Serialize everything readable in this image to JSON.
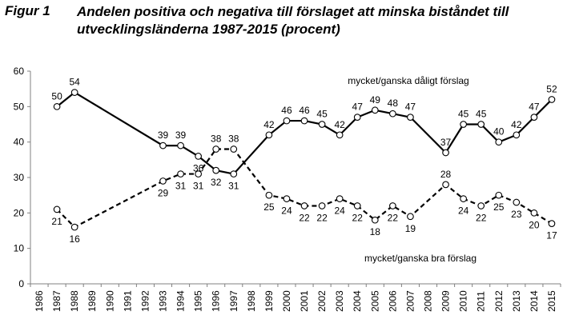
{
  "figure": {
    "label": "Figur 1",
    "title": "Andelen positiva och negativa till förslaget att minska biståndet till utvecklingsländerna 1987-2015 (procent)"
  },
  "chart_data": {
    "type": "line",
    "ylim": [
      0,
      60
    ],
    "yticks": [
      0,
      10,
      20,
      30,
      40,
      50,
      60
    ],
    "x_categories": [
      "1986",
      "1987",
      "1988",
      "1989",
      "1990",
      "1991",
      "1992",
      "1993",
      "1994",
      "1995",
      "1996",
      "1997",
      "1998",
      "1999",
      "2000",
      "2001",
      "2002",
      "2003",
      "2004",
      "2005",
      "2006",
      "2007",
      "2008",
      "2009",
      "2010",
      "2011",
      "2012",
      "2013",
      "2014",
      "2015"
    ],
    "series": [
      {
        "name": "mycket/ganska dåligt förslag",
        "style": "solid",
        "points": [
          {
            "x": "1987",
            "y": 50
          },
          {
            "x": "1988",
            "y": 54
          },
          {
            "x": "1993",
            "y": 39
          },
          {
            "x": "1994",
            "y": 39
          },
          {
            "x": "1995",
            "y": 36
          },
          {
            "x": "1996",
            "y": 32
          },
          {
            "x": "1997",
            "y": 31
          },
          {
            "x": "1999",
            "y": 42
          },
          {
            "x": "2000",
            "y": 46
          },
          {
            "x": "2001",
            "y": 46
          },
          {
            "x": "2002",
            "y": 45
          },
          {
            "x": "2003",
            "y": 42
          },
          {
            "x": "2004",
            "y": 47
          },
          {
            "x": "2005",
            "y": 49
          },
          {
            "x": "2006",
            "y": 48
          },
          {
            "x": "2007",
            "y": 47
          },
          {
            "x": "2009",
            "y": 37
          },
          {
            "x": "2010",
            "y": 45
          },
          {
            "x": "2011",
            "y": 45
          },
          {
            "x": "2012",
            "y": 40
          },
          {
            "x": "2013",
            "y": 42
          },
          {
            "x": "2014",
            "y": 47
          },
          {
            "x": "2015",
            "y": 52
          }
        ]
      },
      {
        "name": "mycket/ganska bra förslag",
        "style": "dashed",
        "points": [
          {
            "x": "1987",
            "y": 21
          },
          {
            "x": "1988",
            "y": 16
          },
          {
            "x": "1993",
            "y": 29
          },
          {
            "x": "1994",
            "y": 31
          },
          {
            "x": "1995",
            "y": 31
          },
          {
            "x": "1996",
            "y": 38
          },
          {
            "x": "1997",
            "y": 38
          },
          {
            "x": "1999",
            "y": 25
          },
          {
            "x": "2000",
            "y": 24
          },
          {
            "x": "2001",
            "y": 22
          },
          {
            "x": "2002",
            "y": 22
          },
          {
            "x": "2003",
            "y": 24
          },
          {
            "x": "2004",
            "y": 22
          },
          {
            "x": "2005",
            "y": 18
          },
          {
            "x": "2006",
            "y": 22
          },
          {
            "x": "2007",
            "y": 19
          },
          {
            "x": "2009",
            "y": 28
          },
          {
            "x": "2010",
            "y": 24
          },
          {
            "x": "2011",
            "y": 22
          },
          {
            "x": "2012",
            "y": 25
          },
          {
            "x": "2013",
            "y": 23
          },
          {
            "x": "2014",
            "y": 20
          },
          {
            "x": "2015",
            "y": 17
          }
        ]
      }
    ]
  }
}
